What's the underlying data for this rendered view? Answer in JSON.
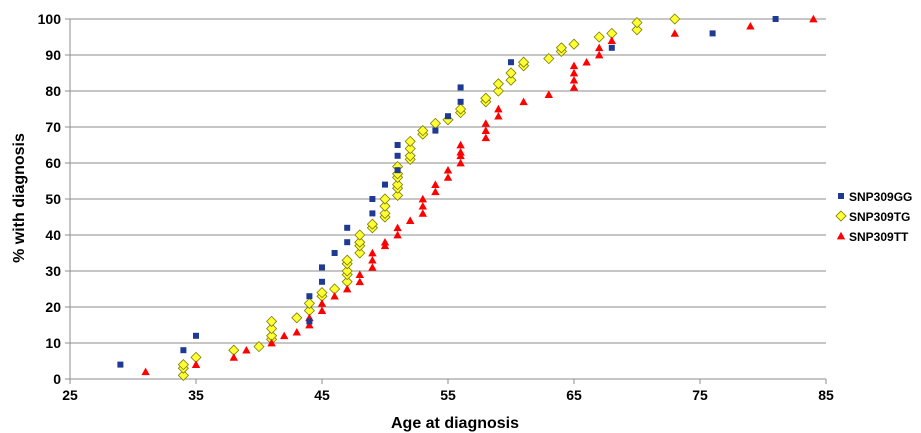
{
  "chart_data": {
    "type": "scatter",
    "title": "",
    "xlabel": "Age at diagnosis",
    "ylabel": "% with diagnosis",
    "xlim": [
      25,
      85
    ],
    "ylim": [
      0,
      100
    ],
    "xticks": [
      25,
      35,
      45,
      55,
      65,
      75,
      85
    ],
    "yticks": [
      0,
      10,
      20,
      30,
      40,
      50,
      60,
      70,
      80,
      90,
      100
    ],
    "grid": "horizontal",
    "legend_position": "right",
    "series": [
      {
        "name": "SNP309GG",
        "marker": "square",
        "color": "#1f3a93",
        "points": [
          [
            29,
            4
          ],
          [
            34,
            8
          ],
          [
            35,
            12
          ],
          [
            44,
            16
          ],
          [
            44,
            23
          ],
          [
            45,
            27
          ],
          [
            45,
            31
          ],
          [
            46,
            35
          ],
          [
            47,
            38
          ],
          [
            47,
            42
          ],
          [
            49,
            46
          ],
          [
            49,
            50
          ],
          [
            50,
            54
          ],
          [
            51,
            58
          ],
          [
            51,
            62
          ],
          [
            51,
            65
          ],
          [
            54,
            69
          ],
          [
            55,
            73
          ],
          [
            56,
            77
          ],
          [
            56,
            81
          ],
          [
            60,
            88
          ],
          [
            68,
            92
          ],
          [
            76,
            96
          ],
          [
            81,
            100
          ]
        ]
      },
      {
        "name": "SNP309TG",
        "marker": "diamond",
        "color": "#ffff33",
        "points": [
          [
            34,
            1
          ],
          [
            34,
            3
          ],
          [
            34,
            4
          ],
          [
            35,
            6
          ],
          [
            38,
            8
          ],
          [
            40,
            9
          ],
          [
            41,
            11
          ],
          [
            41,
            12
          ],
          [
            41,
            14
          ],
          [
            41,
            16
          ],
          [
            43,
            17
          ],
          [
            44,
            19
          ],
          [
            44,
            21
          ],
          [
            45,
            23
          ],
          [
            45,
            24
          ],
          [
            46,
            25
          ],
          [
            47,
            27
          ],
          [
            47,
            29
          ],
          [
            47,
            30
          ],
          [
            47,
            32
          ],
          [
            47,
            33
          ],
          [
            48,
            35
          ],
          [
            48,
            37
          ],
          [
            48,
            38
          ],
          [
            48,
            40
          ],
          [
            49,
            42
          ],
          [
            49,
            43
          ],
          [
            50,
            45
          ],
          [
            50,
            46
          ],
          [
            50,
            48
          ],
          [
            50,
            50
          ],
          [
            51,
            51
          ],
          [
            51,
            53
          ],
          [
            51,
            54
          ],
          [
            51,
            56
          ],
          [
            51,
            57
          ],
          [
            51,
            59
          ],
          [
            52,
            61
          ],
          [
            52,
            62
          ],
          [
            52,
            64
          ],
          [
            52,
            66
          ],
          [
            53,
            68
          ],
          [
            53,
            69
          ],
          [
            54,
            71
          ],
          [
            55,
            72
          ],
          [
            56,
            74
          ],
          [
            56,
            75
          ],
          [
            58,
            77
          ],
          [
            58,
            78
          ],
          [
            59,
            80
          ],
          [
            59,
            82
          ],
          [
            60,
            83
          ],
          [
            60,
            85
          ],
          [
            61,
            87
          ],
          [
            61,
            88
          ],
          [
            63,
            89
          ],
          [
            64,
            91
          ],
          [
            64,
            92
          ],
          [
            65,
            93
          ],
          [
            67,
            95
          ],
          [
            68,
            96
          ],
          [
            70,
            97
          ],
          [
            70,
            99
          ],
          [
            73,
            100
          ]
        ]
      },
      {
        "name": "SNP309TT",
        "marker": "triangle",
        "color": "#ff0000",
        "points": [
          [
            31,
            2
          ],
          [
            35,
            4
          ],
          [
            38,
            6
          ],
          [
            39,
            8
          ],
          [
            41,
            10
          ],
          [
            42,
            12
          ],
          [
            43,
            13
          ],
          [
            44,
            15
          ],
          [
            44,
            17
          ],
          [
            45,
            19
          ],
          [
            45,
            21
          ],
          [
            46,
            23
          ],
          [
            47,
            25
          ],
          [
            48,
            27
          ],
          [
            48,
            29
          ],
          [
            49,
            31
          ],
          [
            49,
            33
          ],
          [
            49,
            35
          ],
          [
            50,
            37
          ],
          [
            50,
            38
          ],
          [
            51,
            40
          ],
          [
            51,
            42
          ],
          [
            52,
            44
          ],
          [
            53,
            46
          ],
          [
            53,
            48
          ],
          [
            53,
            50
          ],
          [
            54,
            52
          ],
          [
            54,
            54
          ],
          [
            55,
            56
          ],
          [
            55,
            58
          ],
          [
            56,
            60
          ],
          [
            56,
            62
          ],
          [
            56,
            63
          ],
          [
            56,
            65
          ],
          [
            58,
            67
          ],
          [
            58,
            69
          ],
          [
            58,
            71
          ],
          [
            59,
            73
          ],
          [
            59,
            75
          ],
          [
            61,
            77
          ],
          [
            63,
            79
          ],
          [
            65,
            81
          ],
          [
            65,
            83
          ],
          [
            65,
            85
          ],
          [
            65,
            87
          ],
          [
            66,
            88
          ],
          [
            67,
            90
          ],
          [
            67,
            92
          ],
          [
            68,
            94
          ],
          [
            73,
            96
          ],
          [
            79,
            98
          ],
          [
            84,
            100
          ]
        ]
      }
    ]
  }
}
